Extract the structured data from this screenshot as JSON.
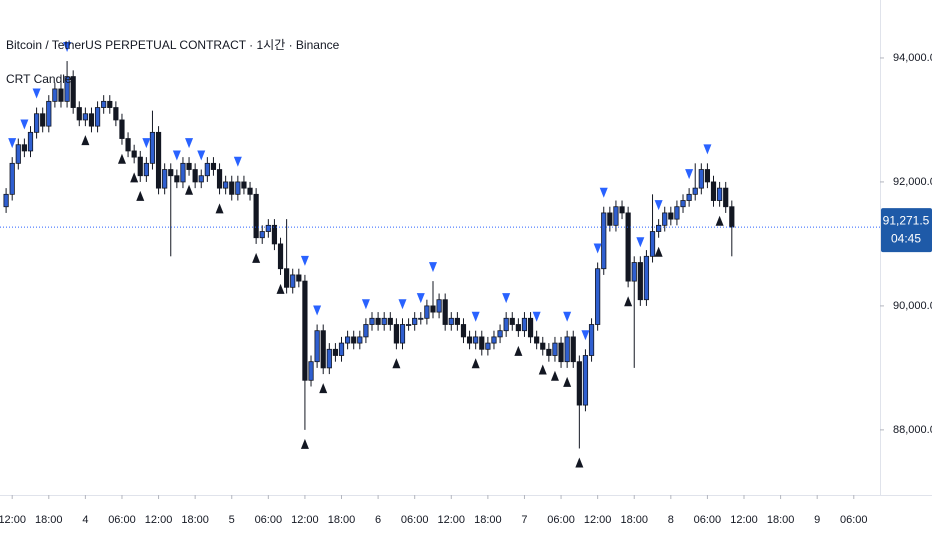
{
  "chart_data": {
    "type": "candlestick",
    "title": "Bitcoin / TetherUS PERPETUAL CONTRACT · 1시간 · Binance",
    "indicator": "CRT Candle",
    "up_color": "#2f5fd0",
    "down_color": "#131722",
    "sell_marker_color": "#2962ff",
    "buy_marker_color": "#131722",
    "xlim": [
      -1,
      143.3
    ],
    "xticks": [
      {
        "value": 1,
        "label": "12:00"
      },
      {
        "value": 7,
        "label": "18:00"
      },
      {
        "value": 13,
        "label": "4"
      },
      {
        "value": 19,
        "label": "06:00"
      },
      {
        "value": 25,
        "label": "12:00"
      },
      {
        "value": 31,
        "label": "18:00"
      },
      {
        "value": 37,
        "label": "5"
      },
      {
        "value": 43,
        "label": "06:00"
      },
      {
        "value": 49,
        "label": "12:00"
      },
      {
        "value": 55,
        "label": "18:00"
      },
      {
        "value": 61,
        "label": "6"
      },
      {
        "value": 67,
        "label": "06:00"
      },
      {
        "value": 73,
        "label": "12:00"
      },
      {
        "value": 79,
        "label": "18:00"
      },
      {
        "value": 85,
        "label": "7"
      },
      {
        "value": 91,
        "label": "06:00"
      },
      {
        "value": 97,
        "label": "12:00"
      },
      {
        "value": 103,
        "label": "18:00"
      },
      {
        "value": 109,
        "label": "8"
      },
      {
        "value": 115,
        "label": "06:00"
      },
      {
        "value": 121,
        "label": "12:00"
      },
      {
        "value": 127,
        "label": "18:00"
      },
      {
        "value": 133,
        "label": "9"
      },
      {
        "value": 139,
        "label": "06:00"
      }
    ],
    "ylim": [
      87030,
      94935
    ],
    "yticks": [
      {
        "value": 88000,
        "label": "88,000.0"
      },
      {
        "value": 90000,
        "label": "90,000.0"
      },
      {
        "value": 92000,
        "label": "92,000.0"
      },
      {
        "value": 94000,
        "label": "94,000.0"
      }
    ],
    "last_price": 91271.5,
    "last_price_label": "91,271.5",
    "countdown": "04:45",
    "ohlc": [
      [
        91600,
        91900,
        91500,
        91800
      ],
      [
        91800,
        92400,
        91700,
        92300
      ],
      [
        92300,
        92700,
        92200,
        92600
      ],
      [
        92600,
        92700,
        92400,
        92500
      ],
      [
        92500,
        92900,
        92400,
        92800
      ],
      [
        92800,
        93200,
        92700,
        93100
      ],
      [
        93100,
        93200,
        92800,
        92900
      ],
      [
        92900,
        93400,
        92800,
        93300
      ],
      [
        93300,
        93600,
        93200,
        93500
      ],
      [
        93500,
        93600,
        93200,
        93300
      ],
      [
        93300,
        93950,
        93200,
        93700
      ],
      [
        93700,
        93800,
        93100,
        93200
      ],
      [
        93200,
        93300,
        92900,
        93000
      ],
      [
        93000,
        93200,
        92900,
        93100
      ],
      [
        93100,
        93200,
        92800,
        92900
      ],
      [
        92900,
        93300,
        92800,
        93200
      ],
      [
        93200,
        93400,
        93100,
        93300
      ],
      [
        93300,
        93400,
        93100,
        93200
      ],
      [
        93200,
        93300,
        92900,
        93000
      ],
      [
        93000,
        93100,
        92600,
        92700
      ],
      [
        92700,
        92800,
        92400,
        92500
      ],
      [
        92500,
        92600,
        92300,
        92400
      ],
      [
        92400,
        92500,
        92000,
        92100
      ],
      [
        92100,
        92400,
        92000,
        92300
      ],
      [
        92300,
        93150,
        92200,
        92800
      ],
      [
        92800,
        92900,
        91800,
        91900
      ],
      [
        91900,
        92300,
        91800,
        92200
      ],
      [
        92200,
        92300,
        90800,
        92100
      ],
      [
        92100,
        92200,
        91900,
        92000
      ],
      [
        92000,
        92400,
        91900,
        92300
      ],
      [
        92300,
        92400,
        92100,
        92200
      ],
      [
        92200,
        92300,
        91900,
        92000
      ],
      [
        92000,
        92200,
        91900,
        92100
      ],
      [
        92100,
        92400,
        92000,
        92300
      ],
      [
        92300,
        92400,
        92100,
        92200
      ],
      [
        92200,
        92300,
        91800,
        91900
      ],
      [
        91900,
        92100,
        91800,
        92000
      ],
      [
        92000,
        92100,
        91700,
        91800
      ],
      [
        91800,
        92100,
        91700,
        92000
      ],
      [
        92000,
        92100,
        91800,
        91900
      ],
      [
        91900,
        92000,
        91700,
        91800
      ],
      [
        91800,
        91900,
        91000,
        91100
      ],
      [
        91100,
        91300,
        91000,
        91200
      ],
      [
        91200,
        91400,
        91100,
        91300
      ],
      [
        91300,
        91400,
        90900,
        91000
      ],
      [
        91000,
        91100,
        90500,
        90600
      ],
      [
        90600,
        91400,
        90200,
        90300
      ],
      [
        90300,
        90600,
        90200,
        90500
      ],
      [
        90500,
        90600,
        90300,
        90400
      ],
      [
        90400,
        90500,
        88000,
        88800
      ],
      [
        88800,
        89200,
        88700,
        89100
      ],
      [
        89100,
        89700,
        89000,
        89600
      ],
      [
        89600,
        89700,
        88900,
        89000
      ],
      [
        89000,
        89400,
        88900,
        89300
      ],
      [
        89300,
        89400,
        89100,
        89200
      ],
      [
        89200,
        89500,
        89100,
        89400
      ],
      [
        89400,
        89600,
        89300,
        89500
      ],
      [
        89500,
        89600,
        89300,
        89400
      ],
      [
        89400,
        89600,
        89300,
        89500
      ],
      [
        89500,
        89800,
        89400,
        89700
      ],
      [
        89700,
        89900,
        89600,
        89800
      ],
      [
        89800,
        89900,
        89600,
        89700
      ],
      [
        89700,
        89900,
        89600,
        89800
      ],
      [
        89800,
        89900,
        89600,
        89700
      ],
      [
        89700,
        89800,
        89300,
        89400
      ],
      [
        89400,
        89800,
        89300,
        89700
      ],
      [
        89700,
        89800,
        89600,
        89700
      ],
      [
        89700,
        89900,
        89600,
        89800
      ],
      [
        89800,
        89900,
        89700,
        89800
      ],
      [
        89800,
        90100,
        89700,
        90000
      ],
      [
        90000,
        90400,
        89800,
        89900
      ],
      [
        89900,
        90200,
        89800,
        90100
      ],
      [
        90100,
        90200,
        89600,
        89700
      ],
      [
        89700,
        89900,
        89600,
        89800
      ],
      [
        89800,
        89900,
        89600,
        89700
      ],
      [
        89700,
        89800,
        89400,
        89500
      ],
      [
        89500,
        89600,
        89300,
        89400
      ],
      [
        89400,
        89600,
        89300,
        89500
      ],
      [
        89500,
        89600,
        89200,
        89300
      ],
      [
        89300,
        89500,
        89200,
        89400
      ],
      [
        89400,
        89600,
        89300,
        89500
      ],
      [
        89500,
        89700,
        89400,
        89600
      ],
      [
        89600,
        89900,
        89500,
        89800
      ],
      [
        89800,
        89900,
        89600,
        89700
      ],
      [
        89700,
        89800,
        89500,
        89600
      ],
      [
        89600,
        89900,
        89500,
        89800
      ],
      [
        89800,
        89900,
        89400,
        89500
      ],
      [
        89500,
        89600,
        89300,
        89400
      ],
      [
        89400,
        89500,
        89200,
        89300
      ],
      [
        89300,
        89400,
        89100,
        89200
      ],
      [
        89200,
        89500,
        89100,
        89400
      ],
      [
        89400,
        89500,
        89000,
        89100
      ],
      [
        89100,
        89600,
        89000,
        89500
      ],
      [
        89500,
        89600,
        89000,
        89100
      ],
      [
        89100,
        89200,
        87700,
        88400
      ],
      [
        88400,
        89300,
        88300,
        89200
      ],
      [
        89200,
        89800,
        89100,
        89700
      ],
      [
        89700,
        90700,
        89600,
        90600
      ],
      [
        90600,
        91600,
        90500,
        91500
      ],
      [
        91500,
        91600,
        91200,
        91300
      ],
      [
        91300,
        91700,
        91200,
        91600
      ],
      [
        91600,
        91700,
        91400,
        91500
      ],
      [
        91500,
        91600,
        90300,
        90400
      ],
      [
        90400,
        90800,
        89000,
        90700
      ],
      [
        90700,
        90800,
        90000,
        90100
      ],
      [
        90100,
        90900,
        90000,
        90800
      ],
      [
        90800,
        91800,
        90700,
        91200
      ],
      [
        91200,
        91400,
        91100,
        91300
      ],
      [
        91300,
        91600,
        91200,
        91500
      ],
      [
        91500,
        91600,
        91300,
        91400
      ],
      [
        91400,
        91700,
        91300,
        91600
      ],
      [
        91600,
        91800,
        91500,
        91700
      ],
      [
        91700,
        91900,
        91600,
        91800
      ],
      [
        91800,
        92300,
        91700,
        91900
      ],
      [
        91900,
        92300,
        91800,
        92200
      ],
      [
        92200,
        92300,
        91900,
        92000
      ],
      [
        92000,
        92100,
        91600,
        91700
      ],
      [
        91700,
        92000,
        91600,
        91900
      ],
      [
        91900,
        92000,
        91500,
        91600
      ],
      [
        91600,
        91700,
        90800,
        91271.5
      ]
    ],
    "sell_markers": [
      1,
      3,
      5,
      10,
      23,
      28,
      30,
      32,
      38,
      49,
      51,
      59,
      65,
      68,
      70,
      77,
      82,
      87,
      92,
      95,
      97,
      98,
      104,
      107,
      112,
      115
    ],
    "buy_markers": [
      13,
      19,
      21,
      22,
      30,
      35,
      41,
      45,
      49,
      52,
      64,
      77,
      84,
      88,
      90,
      92,
      94,
      102,
      107,
      117
    ]
  }
}
